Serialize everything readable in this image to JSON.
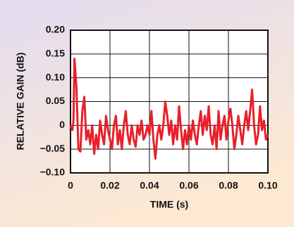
{
  "chart_data": {
    "type": "line",
    "x_label": "TIME (s)",
    "y_label": "RELATIVE GAIN (dB)",
    "x": [
      0,
      0.001,
      0.0015,
      0.002,
      0.003,
      0.004,
      0.005,
      0.006,
      0.007,
      0.008,
      0.009,
      0.01,
      0.011,
      0.012,
      0.013,
      0.014,
      0.015,
      0.016,
      0.017,
      0.018,
      0.019,
      0.02,
      0.021,
      0.022,
      0.023,
      0.024,
      0.025,
      0.026,
      0.027,
      0.028,
      0.029,
      0.03,
      0.031,
      0.032,
      0.033,
      0.034,
      0.035,
      0.036,
      0.037,
      0.038,
      0.039,
      0.04,
      0.041,
      0.042,
      0.043,
      0.044,
      0.045,
      0.046,
      0.047,
      0.048,
      0.049,
      0.05,
      0.051,
      0.052,
      0.053,
      0.054,
      0.055,
      0.056,
      0.057,
      0.058,
      0.059,
      0.06,
      0.061,
      0.062,
      0.063,
      0.064,
      0.065,
      0.066,
      0.067,
      0.068,
      0.069,
      0.07,
      0.071,
      0.072,
      0.073,
      0.074,
      0.075,
      0.076,
      0.077,
      0.078,
      0.079,
      0.08,
      0.081,
      0.082,
      0.083,
      0.084,
      0.085,
      0.086,
      0.087,
      0.088,
      0.089,
      0.09,
      0.091,
      0.092,
      0.093,
      0.094,
      0.095,
      0.096,
      0.097,
      0.098,
      0.099,
      0.1
    ],
    "series": [
      {
        "color": "#e8202a",
        "values": [
          0,
          -0.01,
          0.01,
          0.14,
          0.08,
          -0.05,
          -0.055,
          0.03,
          0.06,
          -0.03,
          -0.01,
          -0.04,
          0,
          -0.06,
          -0.02,
          -0.05,
          0.01,
          -0.02,
          -0.04,
          0.02,
          -0.01,
          -0.03,
          -0.05,
          0,
          0.02,
          -0.04,
          -0.01,
          -0.05,
          0,
          0.03,
          -0.02,
          -0.04,
          0,
          -0.03,
          -0.045,
          0,
          -0.02,
          0.01,
          -0.03,
          -0.02,
          0,
          -0.02,
          0.03,
          -0.03,
          -0.07,
          -0.02,
          0,
          -0.03,
          0,
          0.05,
          0.02,
          -0.02,
          0.01,
          -0.04,
          0,
          -0.03,
          0.04,
          -0.01,
          -0.05,
          -0.01,
          -0.04,
          0,
          -0.03,
          0.01,
          -0.02,
          -0.04,
          0,
          0.03,
          -0.02,
          0.02,
          -0.01,
          0.04,
          -0.02,
          -0.04,
          0,
          -0.05,
          0.03,
          -0.03,
          0,
          0.02,
          -0.03,
          0.01,
          0.035,
          0,
          -0.05,
          -0.02,
          0.02,
          -0.01,
          -0.04,
          0,
          0.03,
          -0.01,
          0.03,
          0.075,
          0,
          -0.04,
          -0.02,
          0.04,
          -0.01,
          0.01,
          -0.03,
          -0.02
        ]
      }
    ],
    "xlim": [
      0,
      0.1
    ],
    "ylim": [
      -0.1,
      0.2
    ],
    "xticks": [
      0,
      0.02,
      0.04,
      0.06,
      0.08,
      {
        "value": 0.1,
        "label": "0.10"
      }
    ],
    "yticks": [
      {
        "value": -0.1,
        "label": "−0.10"
      },
      {
        "value": -0.05,
        "label": "−0.05"
      },
      0,
      0.05,
      {
        "value": 0.1,
        "label": "0.10"
      },
      0.15,
      {
        "value": 0.2,
        "label": "0.20"
      }
    ],
    "grid": true
  }
}
